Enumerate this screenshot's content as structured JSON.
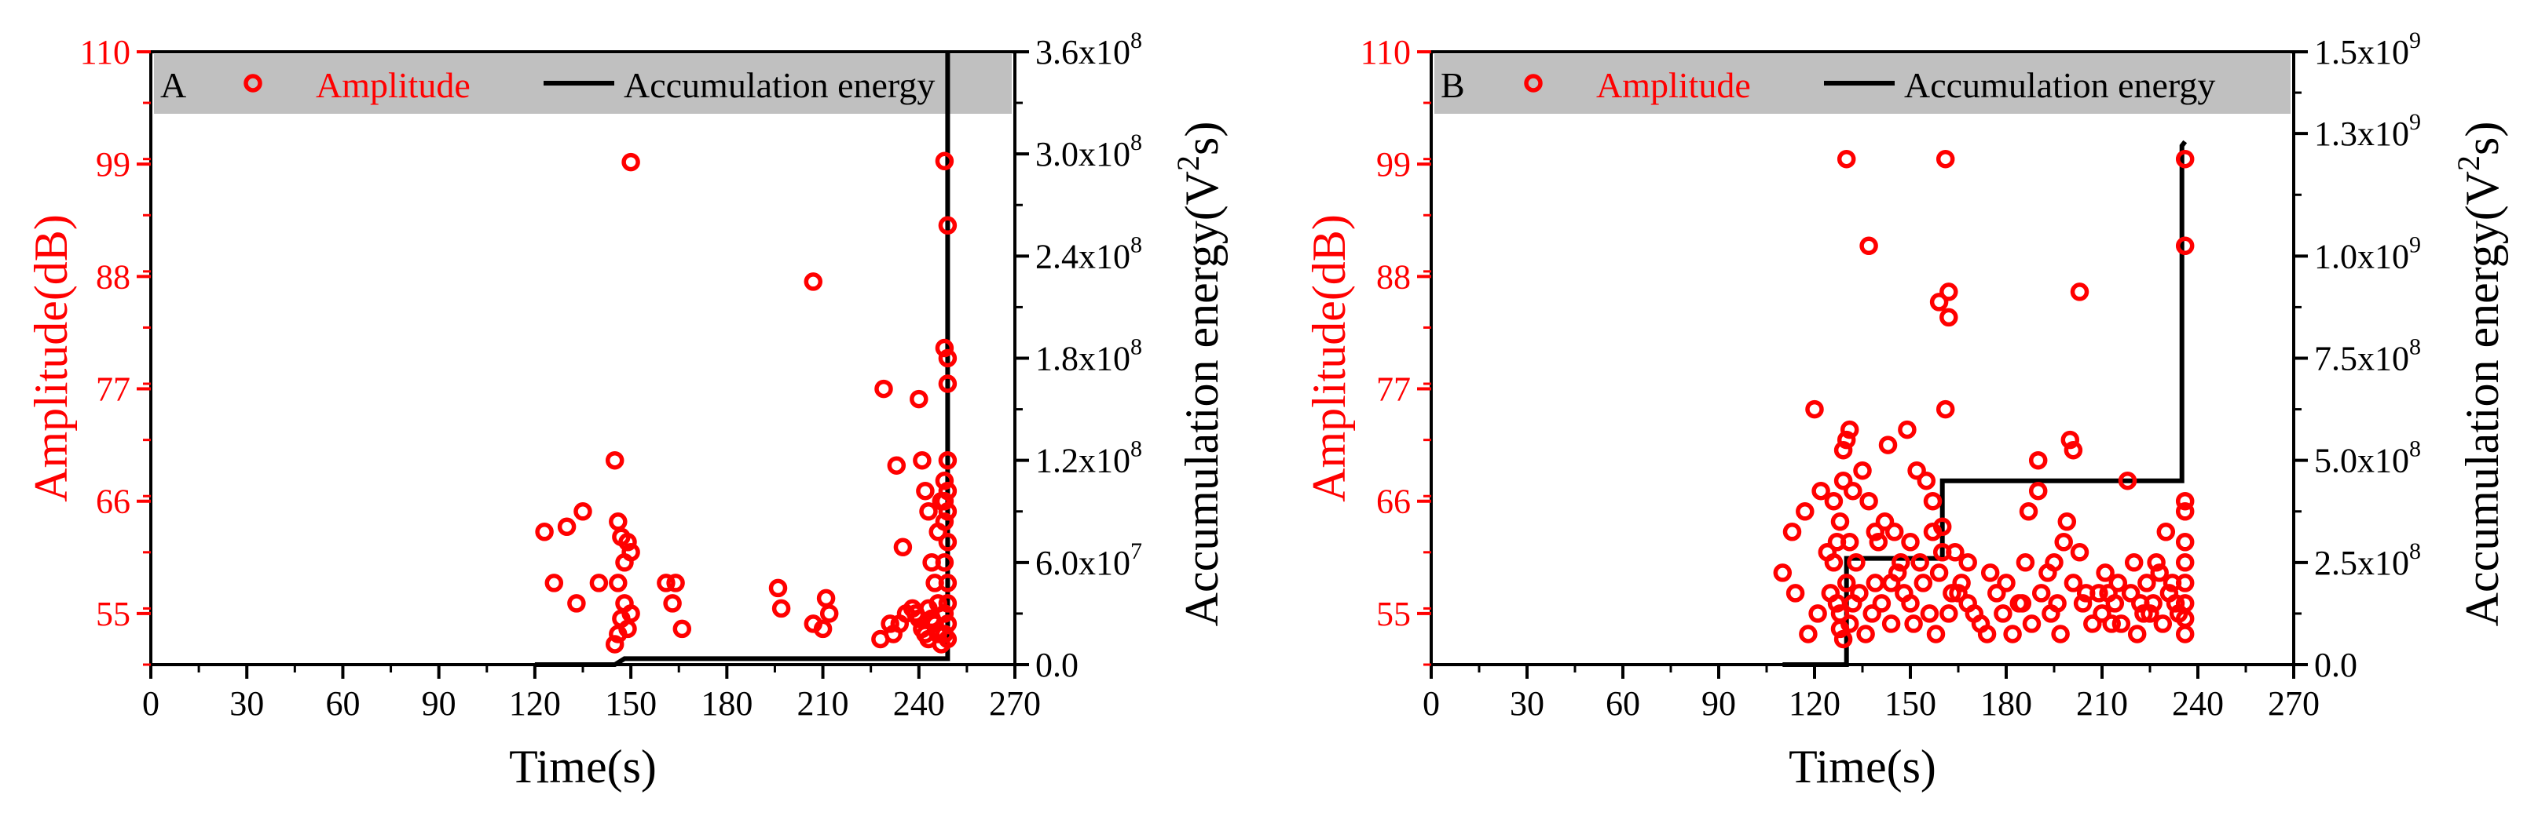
{
  "colors": {
    "amplitude": "#ff0000",
    "energy": "#000000",
    "legend_bg": "#c0c0c0"
  },
  "chart_data": [
    {
      "id": "A",
      "type": "scatter+line",
      "panel_label": "A",
      "xlabel": "Time(s)",
      "ylabel_left": "Amplitude(dB)",
      "ylabel_right_prefix": "Accumulation energy(V",
      "ylabel_right_sup": "2",
      "ylabel_right_suffix": "s)",
      "legend": {
        "scatter": "Amplitude",
        "line": "Accumulation energy",
        "placement": "top"
      },
      "xlim": [
        0,
        270
      ],
      "xticks": [
        0,
        30,
        60,
        90,
        120,
        150,
        180,
        210,
        240,
        270
      ],
      "xtick_labels": [
        "0",
        "30",
        "60",
        "90",
        "120",
        "150",
        "180",
        "210",
        "240",
        "270"
      ],
      "ylim_left": [
        50,
        110
      ],
      "yticks_left": [
        55,
        66,
        77,
        88,
        99,
        110
      ],
      "ytick_labels_left": [
        "55",
        "66",
        "77",
        "88",
        "99",
        "110"
      ],
      "ylim_right": [
        0,
        360000000.0
      ],
      "yticks_right": [
        0,
        60000000.0,
        120000000.0,
        180000000.0,
        240000000.0,
        300000000.0,
        360000000.0
      ],
      "ytick_labels_right": [
        {
          "m": "0.0",
          "e": ""
        },
        {
          "m": "6.0x10",
          "e": "7"
        },
        {
          "m": "1.2x10",
          "e": "8"
        },
        {
          "m": "1.8x10",
          "e": "8"
        },
        {
          "m": "2.4x10",
          "e": "8"
        },
        {
          "m": "3.0x10",
          "e": "8"
        },
        {
          "m": "3.6x10",
          "e": "8"
        }
      ],
      "amplitude_points": [
        [
          123,
          63
        ],
        [
          130,
          63.5
        ],
        [
          135,
          65
        ],
        [
          126,
          58
        ],
        [
          133,
          56
        ],
        [
          140,
          58
        ],
        [
          145,
          70
        ],
        [
          146,
          64
        ],
        [
          147,
          62.5
        ],
        [
          148,
          60
        ],
        [
          149,
          62
        ],
        [
          150,
          61
        ],
        [
          146,
          58
        ],
        [
          148,
          56
        ],
        [
          150,
          55
        ],
        [
          147,
          54.5
        ],
        [
          146,
          53
        ],
        [
          149,
          53.5
        ],
        [
          145,
          52
        ],
        [
          150,
          99.2
        ],
        [
          161,
          58
        ],
        [
          164,
          58
        ],
        [
          163,
          56
        ],
        [
          166,
          53.5
        ],
        [
          196,
          57.5
        ],
        [
          197,
          55.5
        ],
        [
          207,
          54
        ],
        [
          210,
          53.5
        ],
        [
          211,
          56.5
        ],
        [
          212,
          55
        ],
        [
          207,
          87.5
        ],
        [
          228,
          52.5
        ],
        [
          231,
          54
        ],
        [
          232,
          53
        ],
        [
          233,
          69.5
        ],
        [
          235,
          61.5
        ],
        [
          236,
          55
        ],
        [
          234,
          54
        ],
        [
          229,
          77
        ],
        [
          240,
          76
        ],
        [
          241,
          70
        ],
        [
          242,
          67
        ],
        [
          243,
          65
        ],
        [
          244,
          60
        ],
        [
          245,
          58
        ],
        [
          246,
          56
        ],
        [
          238,
          55.5
        ],
        [
          239,
          55
        ],
        [
          240,
          54.5
        ],
        [
          241,
          53.5
        ],
        [
          242,
          53
        ],
        [
          243,
          52.5
        ],
        [
          248,
          99.3
        ],
        [
          249,
          93
        ],
        [
          248,
          81
        ],
        [
          249,
          80
        ],
        [
          249,
          77.5
        ],
        [
          249,
          70
        ],
        [
          248,
          68
        ],
        [
          249,
          67
        ],
        [
          248,
          66
        ],
        [
          249,
          65
        ],
        [
          248,
          64
        ],
        [
          249,
          62
        ],
        [
          248,
          60
        ],
        [
          249,
          58
        ],
        [
          249,
          56
        ],
        [
          248,
          55
        ],
        [
          249,
          54
        ],
        [
          248,
          53
        ],
        [
          249,
          52.5
        ],
        [
          247,
          52
        ],
        [
          246,
          53
        ],
        [
          245,
          54
        ],
        [
          244,
          54.5
        ],
        [
          243,
          55.5
        ],
        [
          246,
          63
        ],
        [
          247,
          66
        ]
      ],
      "energy_steps": [
        [
          120,
          0
        ],
        [
          145,
          0
        ],
        [
          148,
          3500000.0
        ],
        [
          249,
          3500000.0
        ],
        [
          249,
          360000000.0
        ]
      ]
    },
    {
      "id": "B",
      "type": "scatter+line",
      "panel_label": "B",
      "xlabel": "Time(s)",
      "ylabel_left": "Amplitude(dB)",
      "ylabel_right_prefix": "Accumulation energy(V",
      "ylabel_right_sup": "2",
      "ylabel_right_suffix": "s)",
      "legend": {
        "scatter": "Amplitude",
        "line": "Accumulation energy",
        "placement": "top"
      },
      "xlim": [
        0,
        270
      ],
      "xticks": [
        0,
        30,
        60,
        90,
        120,
        150,
        180,
        210,
        240,
        270
      ],
      "xtick_labels": [
        "0",
        "30",
        "60",
        "90",
        "120",
        "150",
        "180",
        "210",
        "240",
        "270"
      ],
      "ylim_left": [
        50,
        110
      ],
      "yticks_left": [
        55,
        66,
        77,
        88,
        99,
        110
      ],
      "ytick_labels_left": [
        "55",
        "66",
        "77",
        "88",
        "99",
        "110"
      ],
      "ylim_right": [
        0,
        1500000000.0
      ],
      "yticks_right": [
        0,
        250000000.0,
        500000000.0,
        750000000.0,
        1000000000.0,
        1300000000.0,
        1500000000.0
      ],
      "ytick_labels_right": [
        {
          "m": "0.0",
          "e": ""
        },
        {
          "m": "2.5x10",
          "e": "8"
        },
        {
          "m": "5.0x10",
          "e": "8"
        },
        {
          "m": "7.5x10",
          "e": "8"
        },
        {
          "m": "1.0x10",
          "e": "9"
        },
        {
          "m": "1.3x10",
          "e": "9"
        },
        {
          "m": "1.5x10",
          "e": "9"
        }
      ],
      "amplitude_points": [
        [
          130,
          99.5
        ],
        [
          161,
          99.5
        ],
        [
          236,
          99.5
        ],
        [
          137,
          91
        ],
        [
          236,
          91
        ],
        [
          159,
          85.5
        ],
        [
          162,
          86.5
        ],
        [
          162,
          84
        ],
        [
          203,
          86.5
        ],
        [
          120,
          75
        ],
        [
          161,
          75
        ],
        [
          130,
          72
        ],
        [
          131,
          73
        ],
        [
          129,
          71
        ],
        [
          143,
          71.5
        ],
        [
          149,
          73
        ],
        [
          190,
          70
        ],
        [
          200,
          72
        ],
        [
          201,
          71
        ],
        [
          113,
          63
        ],
        [
          117,
          65
        ],
        [
          122,
          67
        ],
        [
          126,
          66
        ],
        [
          128,
          64
        ],
        [
          129,
          68
        ],
        [
          132,
          67
        ],
        [
          135,
          69
        ],
        [
          137,
          66
        ],
        [
          140,
          62
        ],
        [
          142,
          64
        ],
        [
          145,
          63
        ],
        [
          147,
          60
        ],
        [
          150,
          62
        ],
        [
          152,
          69
        ],
        [
          155,
          68
        ],
        [
          157,
          66
        ],
        [
          160,
          61
        ],
        [
          163,
          57
        ],
        [
          165,
          57
        ],
        [
          170,
          55
        ],
        [
          175,
          59
        ],
        [
          180,
          58
        ],
        [
          186,
          60
        ],
        [
          187,
          65
        ],
        [
          190,
          67
        ],
        [
          193,
          59
        ],
        [
          196,
          56
        ],
        [
          199,
          64
        ],
        [
          203,
          61
        ],
        [
          205,
          57
        ],
        [
          210,
          55
        ],
        [
          213,
          54
        ],
        [
          215,
          58
        ],
        [
          218,
          68
        ],
        [
          220,
          60
        ],
        [
          222,
          56
        ],
        [
          225,
          55
        ],
        [
          228,
          59
        ],
        [
          230,
          63
        ],
        [
          232,
          58
        ],
        [
          234,
          55
        ],
        [
          236,
          66
        ],
        [
          236,
          65
        ],
        [
          236,
          62
        ],
        [
          236,
          60
        ],
        [
          236,
          58
        ],
        [
          236,
          56
        ],
        [
          236,
          54.5
        ],
        [
          236,
          53
        ],
        [
          110,
          59
        ],
        [
          114,
          57
        ],
        [
          118,
          53
        ],
        [
          121,
          55
        ],
        [
          124,
          61
        ],
        [
          125,
          57
        ],
        [
          127,
          56
        ],
        [
          128,
          55
        ],
        [
          130,
          58
        ],
        [
          131,
          62
        ],
        [
          133,
          60
        ],
        [
          134,
          57
        ],
        [
          136,
          53
        ],
        [
          138,
          55
        ],
        [
          139,
          58
        ],
        [
          141,
          56
        ],
        [
          144,
          54
        ],
        [
          146,
          59
        ],
        [
          148,
          57
        ],
        [
          150,
          56
        ],
        [
          151,
          54
        ],
        [
          153,
          60
        ],
        [
          154,
          58
        ],
        [
          156,
          55
        ],
        [
          158,
          53
        ],
        [
          159,
          59
        ],
        [
          162,
          55
        ],
        [
          164,
          61
        ],
        [
          166,
          58
        ],
        [
          168,
          56
        ],
        [
          172,
          54
        ],
        [
          174,
          53
        ],
        [
          177,
          57
        ],
        [
          179,
          55
        ],
        [
          182,
          53
        ],
        [
          184,
          56
        ],
        [
          188,
          54
        ],
        [
          191,
          57
        ],
        [
          194,
          55
        ],
        [
          197,
          53
        ],
        [
          201,
          58
        ],
        [
          204,
          56
        ],
        [
          207,
          54
        ],
        [
          209,
          57
        ],
        [
          211,
          59
        ],
        [
          214,
          56
        ],
        [
          216,
          54
        ],
        [
          219,
          57
        ],
        [
          221,
          53
        ],
        [
          224,
          58
        ],
        [
          226,
          56
        ],
        [
          229,
          54
        ],
        [
          231,
          57
        ],
        [
          233,
          56
        ],
        [
          128,
          53.5
        ],
        [
          129,
          52.5
        ],
        [
          131,
          54
        ],
        [
          132,
          56
        ],
        [
          126,
          60
        ],
        [
          127,
          62
        ],
        [
          139,
          63
        ],
        [
          144,
          58
        ],
        [
          157,
          63
        ],
        [
          160,
          63.5
        ],
        [
          168,
          60
        ],
        [
          185,
          56
        ],
        [
          195,
          60
        ],
        [
          198,
          62
        ],
        [
          212,
          57
        ],
        [
          223,
          55
        ],
        [
          227,
          60
        ]
      ],
      "energy_steps": [
        [
          110,
          0
        ],
        [
          130,
          0
        ],
        [
          130,
          260000000.0
        ],
        [
          160,
          260000000.0
        ],
        [
          160,
          450000000.0
        ],
        [
          235,
          450000000.0
        ],
        [
          235,
          1270000000.0
        ],
        [
          236,
          1280000000.0
        ]
      ]
    }
  ]
}
